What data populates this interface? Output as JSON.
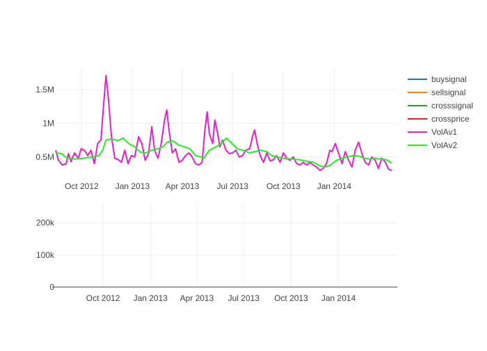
{
  "chart_data": [
    {
      "type": "line",
      "panel": "top",
      "x_type": "date",
      "xlim": [
        "2012-08-15",
        "2014-04-25"
      ],
      "ylim": [
        250000,
        1800000
      ],
      "x_ticks": [
        {
          "value": "2012-10-01",
          "label": "Oct 2012"
        },
        {
          "value": "2013-01-01",
          "label": "Jan 2013"
        },
        {
          "value": "2013-04-01",
          "label": "Apr 2013"
        },
        {
          "value": "2013-07-01",
          "label": "Jul 2013"
        },
        {
          "value": "2013-10-01",
          "label": "Oct 2013"
        },
        {
          "value": "2014-01-01",
          "label": "Jan 2014"
        }
      ],
      "y_ticks": [
        {
          "value": 500000,
          "label": "0.5M"
        },
        {
          "value": 1000000,
          "label": "1M"
        },
        {
          "value": 1500000,
          "label": "1.5M"
        }
      ],
      "grid": true,
      "series": [
        {
          "name": "VolAv1",
          "color": "#e81ec8",
          "points": [
            [
              "2012-08-15",
              600000
            ],
            [
              "2012-08-20",
              450000
            ],
            [
              "2012-08-27",
              380000
            ],
            [
              "2012-09-03",
              400000
            ],
            [
              "2012-09-07",
              550000
            ],
            [
              "2012-09-12",
              430000
            ],
            [
              "2012-09-18",
              560000
            ],
            [
              "2012-09-25",
              480000
            ],
            [
              "2012-09-30",
              620000
            ],
            [
              "2012-10-06",
              600000
            ],
            [
              "2012-10-12",
              520000
            ],
            [
              "2012-10-18",
              600000
            ],
            [
              "2012-10-24",
              400000
            ],
            [
              "2012-10-30",
              700000
            ],
            [
              "2012-11-05",
              750000
            ],
            [
              "2012-11-10",
              1300000
            ],
            [
              "2012-11-14",
              1710000
            ],
            [
              "2012-11-18",
              1400000
            ],
            [
              "2012-11-24",
              800000
            ],
            [
              "2012-11-30",
              480000
            ],
            [
              "2012-12-06",
              460000
            ],
            [
              "2012-12-12",
              420000
            ],
            [
              "2012-12-18",
              600000
            ],
            [
              "2012-12-24",
              400000
            ],
            [
              "2012-12-30",
              520000
            ],
            [
              "2013-01-05",
              500000
            ],
            [
              "2013-01-12",
              800000
            ],
            [
              "2013-01-18",
              700000
            ],
            [
              "2013-01-24",
              450000
            ],
            [
              "2013-01-30",
              550000
            ],
            [
              "2013-02-05",
              950000
            ],
            [
              "2013-02-10",
              600000
            ],
            [
              "2013-02-16",
              480000
            ],
            [
              "2013-02-22",
              700000
            ],
            [
              "2013-02-28",
              1050000
            ],
            [
              "2013-03-04",
              1200000
            ],
            [
              "2013-03-08",
              900000
            ],
            [
              "2013-03-14",
              560000
            ],
            [
              "2013-03-20",
              620000
            ],
            [
              "2013-03-26",
              420000
            ],
            [
              "2013-04-01",
              450000
            ],
            [
              "2013-04-07",
              520000
            ],
            [
              "2013-04-13",
              560000
            ],
            [
              "2013-04-19",
              500000
            ],
            [
              "2013-04-25",
              400000
            ],
            [
              "2013-05-01",
              380000
            ],
            [
              "2013-05-07",
              420000
            ],
            [
              "2013-05-12",
              900000
            ],
            [
              "2013-05-16",
              1170000
            ],
            [
              "2013-05-20",
              850000
            ],
            [
              "2013-05-26",
              700000
            ],
            [
              "2013-05-30",
              1050000
            ],
            [
              "2013-06-04",
              850000
            ],
            [
              "2013-06-08",
              650000
            ],
            [
              "2013-06-13",
              750000
            ],
            [
              "2013-06-19",
              600000
            ],
            [
              "2013-06-25",
              550000
            ],
            [
              "2013-07-01",
              560000
            ],
            [
              "2013-07-07",
              600000
            ],
            [
              "2013-07-13",
              500000
            ],
            [
              "2013-07-19",
              520000
            ],
            [
              "2013-07-25",
              600000
            ],
            [
              "2013-08-01",
              620000
            ],
            [
              "2013-08-06",
              800000
            ],
            [
              "2013-08-10",
              900000
            ],
            [
              "2013-08-15",
              680000
            ],
            [
              "2013-08-20",
              520000
            ],
            [
              "2013-08-26",
              420000
            ],
            [
              "2013-09-01",
              560000
            ],
            [
              "2013-09-07",
              440000
            ],
            [
              "2013-09-13",
              460000
            ],
            [
              "2013-09-19",
              520000
            ],
            [
              "2013-09-25",
              420000
            ],
            [
              "2013-10-01",
              560000
            ],
            [
              "2013-10-07",
              480000
            ],
            [
              "2013-10-13",
              450000
            ],
            [
              "2013-10-19",
              500000
            ],
            [
              "2013-10-25",
              400000
            ],
            [
              "2013-10-31",
              380000
            ],
            [
              "2013-11-06",
              420000
            ],
            [
              "2013-11-12",
              380000
            ],
            [
              "2013-11-18",
              420000
            ],
            [
              "2013-11-24",
              380000
            ],
            [
              "2013-11-30",
              350000
            ],
            [
              "2013-12-06",
              300000
            ],
            [
              "2013-12-12",
              330000
            ],
            [
              "2013-12-18",
              400000
            ],
            [
              "2013-12-24",
              600000
            ],
            [
              "2013-12-28",
              580000
            ],
            [
              "2014-01-03",
              700000
            ],
            [
              "2014-01-09",
              550000
            ],
            [
              "2014-01-15",
              400000
            ],
            [
              "2014-01-21",
              580000
            ],
            [
              "2014-01-27",
              450000
            ],
            [
              "2014-02-02",
              350000
            ],
            [
              "2014-02-08",
              600000
            ],
            [
              "2014-02-14",
              720000
            ],
            [
              "2014-02-20",
              550000
            ],
            [
              "2014-02-26",
              420000
            ],
            [
              "2014-03-04",
              380000
            ],
            [
              "2014-03-10",
              500000
            ],
            [
              "2014-03-16",
              450000
            ],
            [
              "2014-03-22",
              330000
            ],
            [
              "2014-03-28",
              480000
            ],
            [
              "2014-04-03",
              430000
            ],
            [
              "2014-04-09",
              320000
            ],
            [
              "2014-04-15",
              300000
            ]
          ]
        },
        {
          "name": "VolAv2",
          "color": "#22ee22",
          "points": [
            [
              "2012-08-15",
              560000
            ],
            [
              "2012-08-25",
              550000
            ],
            [
              "2012-09-05",
              480000
            ],
            [
              "2012-09-20",
              470000
            ],
            [
              "2012-10-05",
              480000
            ],
            [
              "2012-10-20",
              500000
            ],
            [
              "2012-11-01",
              520000
            ],
            [
              "2012-11-08",
              600000
            ],
            [
              "2012-11-14",
              750000
            ],
            [
              "2012-11-25",
              770000
            ],
            [
              "2012-12-05",
              740000
            ],
            [
              "2012-12-15",
              780000
            ],
            [
              "2012-12-25",
              700000
            ],
            [
              "2013-01-05",
              650000
            ],
            [
              "2013-01-15",
              570000
            ],
            [
              "2013-01-25",
              560000
            ],
            [
              "2013-02-05",
              600000
            ],
            [
              "2013-02-15",
              620000
            ],
            [
              "2013-02-25",
              650000
            ],
            [
              "2013-03-05",
              720000
            ],
            [
              "2013-03-15",
              740000
            ],
            [
              "2013-03-25",
              680000
            ],
            [
              "2013-04-05",
              650000
            ],
            [
              "2013-04-15",
              620000
            ],
            [
              "2013-04-25",
              520000
            ],
            [
              "2013-05-05",
              500000
            ],
            [
              "2013-05-10",
              480000
            ],
            [
              "2013-05-20",
              600000
            ],
            [
              "2013-06-01",
              650000
            ],
            [
              "2013-06-10",
              700000
            ],
            [
              "2013-06-20",
              780000
            ],
            [
              "2013-06-30",
              700000
            ],
            [
              "2013-07-10",
              620000
            ],
            [
              "2013-07-20",
              600000
            ],
            [
              "2013-08-01",
              560000
            ],
            [
              "2013-08-10",
              580000
            ],
            [
              "2013-08-20",
              600000
            ],
            [
              "2013-09-01",
              580000
            ],
            [
              "2013-09-10",
              520000
            ],
            [
              "2013-09-20",
              500000
            ],
            [
              "2013-10-01",
              480000
            ],
            [
              "2013-10-15",
              470000
            ],
            [
              "2013-10-30",
              460000
            ],
            [
              "2013-11-10",
              440000
            ],
            [
              "2013-11-25",
              420000
            ],
            [
              "2013-12-05",
              370000
            ],
            [
              "2013-12-15",
              350000
            ],
            [
              "2013-12-25",
              380000
            ],
            [
              "2014-01-05",
              450000
            ],
            [
              "2014-01-15",
              480000
            ],
            [
              "2014-01-25",
              500000
            ],
            [
              "2014-02-05",
              520000
            ],
            [
              "2014-02-15",
              510000
            ],
            [
              "2014-02-25",
              480000
            ],
            [
              "2014-03-05",
              470000
            ],
            [
              "2014-03-15",
              480000
            ],
            [
              "2014-03-25",
              470000
            ],
            [
              "2014-04-05",
              460000
            ],
            [
              "2014-04-15",
              410000
            ]
          ]
        }
      ]
    },
    {
      "type": "line",
      "panel": "bottom",
      "x_type": "date",
      "xlim": [
        "2012-07-01",
        "2014-04-25"
      ],
      "ylim": [
        0,
        260000
      ],
      "x_ticks": [
        {
          "value": "2012-10-01",
          "label": "Oct 2012"
        },
        {
          "value": "2013-01-01",
          "label": "Jan 2013"
        },
        {
          "value": "2013-04-01",
          "label": "Apr 2013"
        },
        {
          "value": "2013-07-01",
          "label": "Jul 2013"
        },
        {
          "value": "2013-10-01",
          "label": "Oct 2013"
        },
        {
          "value": "2014-01-01",
          "label": "Jan 2014"
        }
      ],
      "y_ticks": [
        {
          "value": 0,
          "label": "0"
        },
        {
          "value": 100000,
          "label": "100k"
        },
        {
          "value": 200000,
          "label": "200k"
        }
      ],
      "grid": true,
      "series": []
    }
  ],
  "legend": {
    "placement": "top-right",
    "items": [
      {
        "label": "buysignal",
        "color": "#1f77b4"
      },
      {
        "label": "sellsignal",
        "color": "#ff7f0e"
      },
      {
        "label": "crosssignal",
        "color": "#2ca02c"
      },
      {
        "label": "crossprice",
        "color": "#d62728"
      },
      {
        "label": "VolAv1",
        "color": "#e81ec8"
      },
      {
        "label": "VolAv2",
        "color": "#22ee22"
      }
    ]
  }
}
